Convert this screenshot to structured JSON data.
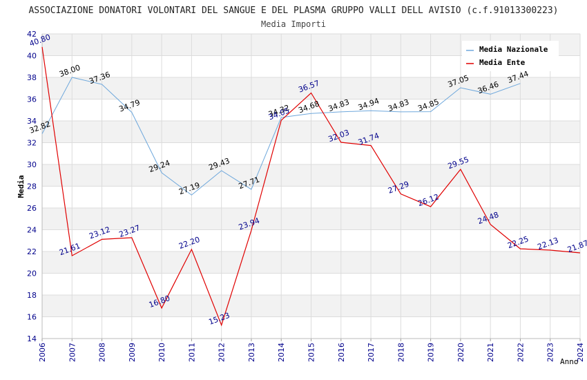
{
  "chart_data": {
    "type": "line",
    "title": "ASSOCIAZIONE DONATORI VOLONTARI DEL SANGUE E DEL PLASMA GRUPPO VALLI DELL AVISIO (c.f.91013300223)",
    "subtitle": "Media Importi",
    "xlabel": "Anno",
    "ylabel": "Media",
    "ylim": [
      14,
      42
    ],
    "y_ticks": [
      "14",
      "16",
      "18",
      "20",
      "22",
      "24",
      "26",
      "28",
      "30",
      "32",
      "34",
      "36",
      "38",
      "40",
      "42"
    ],
    "categories": [
      "2006",
      "2007",
      "2008",
      "2009",
      "2010",
      "2011",
      "2012",
      "2013",
      "2014",
      "2015",
      "2016",
      "2017",
      "2018",
      "2019",
      "2020",
      "2021",
      "2022",
      "2023",
      "2024"
    ],
    "series": [
      {
        "name": "Media Nazionale",
        "color": "#6fa8dc",
        "label_color": "#000000",
        "values": [
          32.82,
          38.0,
          37.36,
          34.79,
          29.24,
          27.19,
          29.43,
          27.71,
          34.32,
          34.68,
          34.83,
          34.94,
          34.83,
          34.85,
          37.05,
          36.46,
          37.44,
          null,
          null
        ],
        "labels": [
          "32.82",
          "38.00",
          "37.36",
          "34.79",
          "29.24",
          "27.19",
          "29.43",
          "27.71",
          "34.32",
          "34.68",
          "34.83",
          "34.94",
          "34.83",
          "34.85",
          "37.05",
          "36.46",
          "37.44",
          "",
          ""
        ]
      },
      {
        "name": "Media Ente",
        "color": "#e00000",
        "label_color": "#00008b",
        "values": [
          40.8,
          21.61,
          23.12,
          23.27,
          16.8,
          22.2,
          15.23,
          23.94,
          34.05,
          36.57,
          32.03,
          31.74,
          27.29,
          26.12,
          29.55,
          24.48,
          22.25,
          22.13,
          21.87
        ],
        "labels": [
          "40.80",
          "21.61",
          "23.12",
          "23.27",
          "16.80",
          "22.20",
          "15.23",
          "23.94",
          "34.05",
          "36.57",
          "32.03",
          "31.74",
          "27.29",
          "26.12",
          "29.55",
          "24.48",
          "22.25",
          "22.13",
          "21.87"
        ]
      }
    ],
    "legend_position": "top-right",
    "grid": true
  }
}
